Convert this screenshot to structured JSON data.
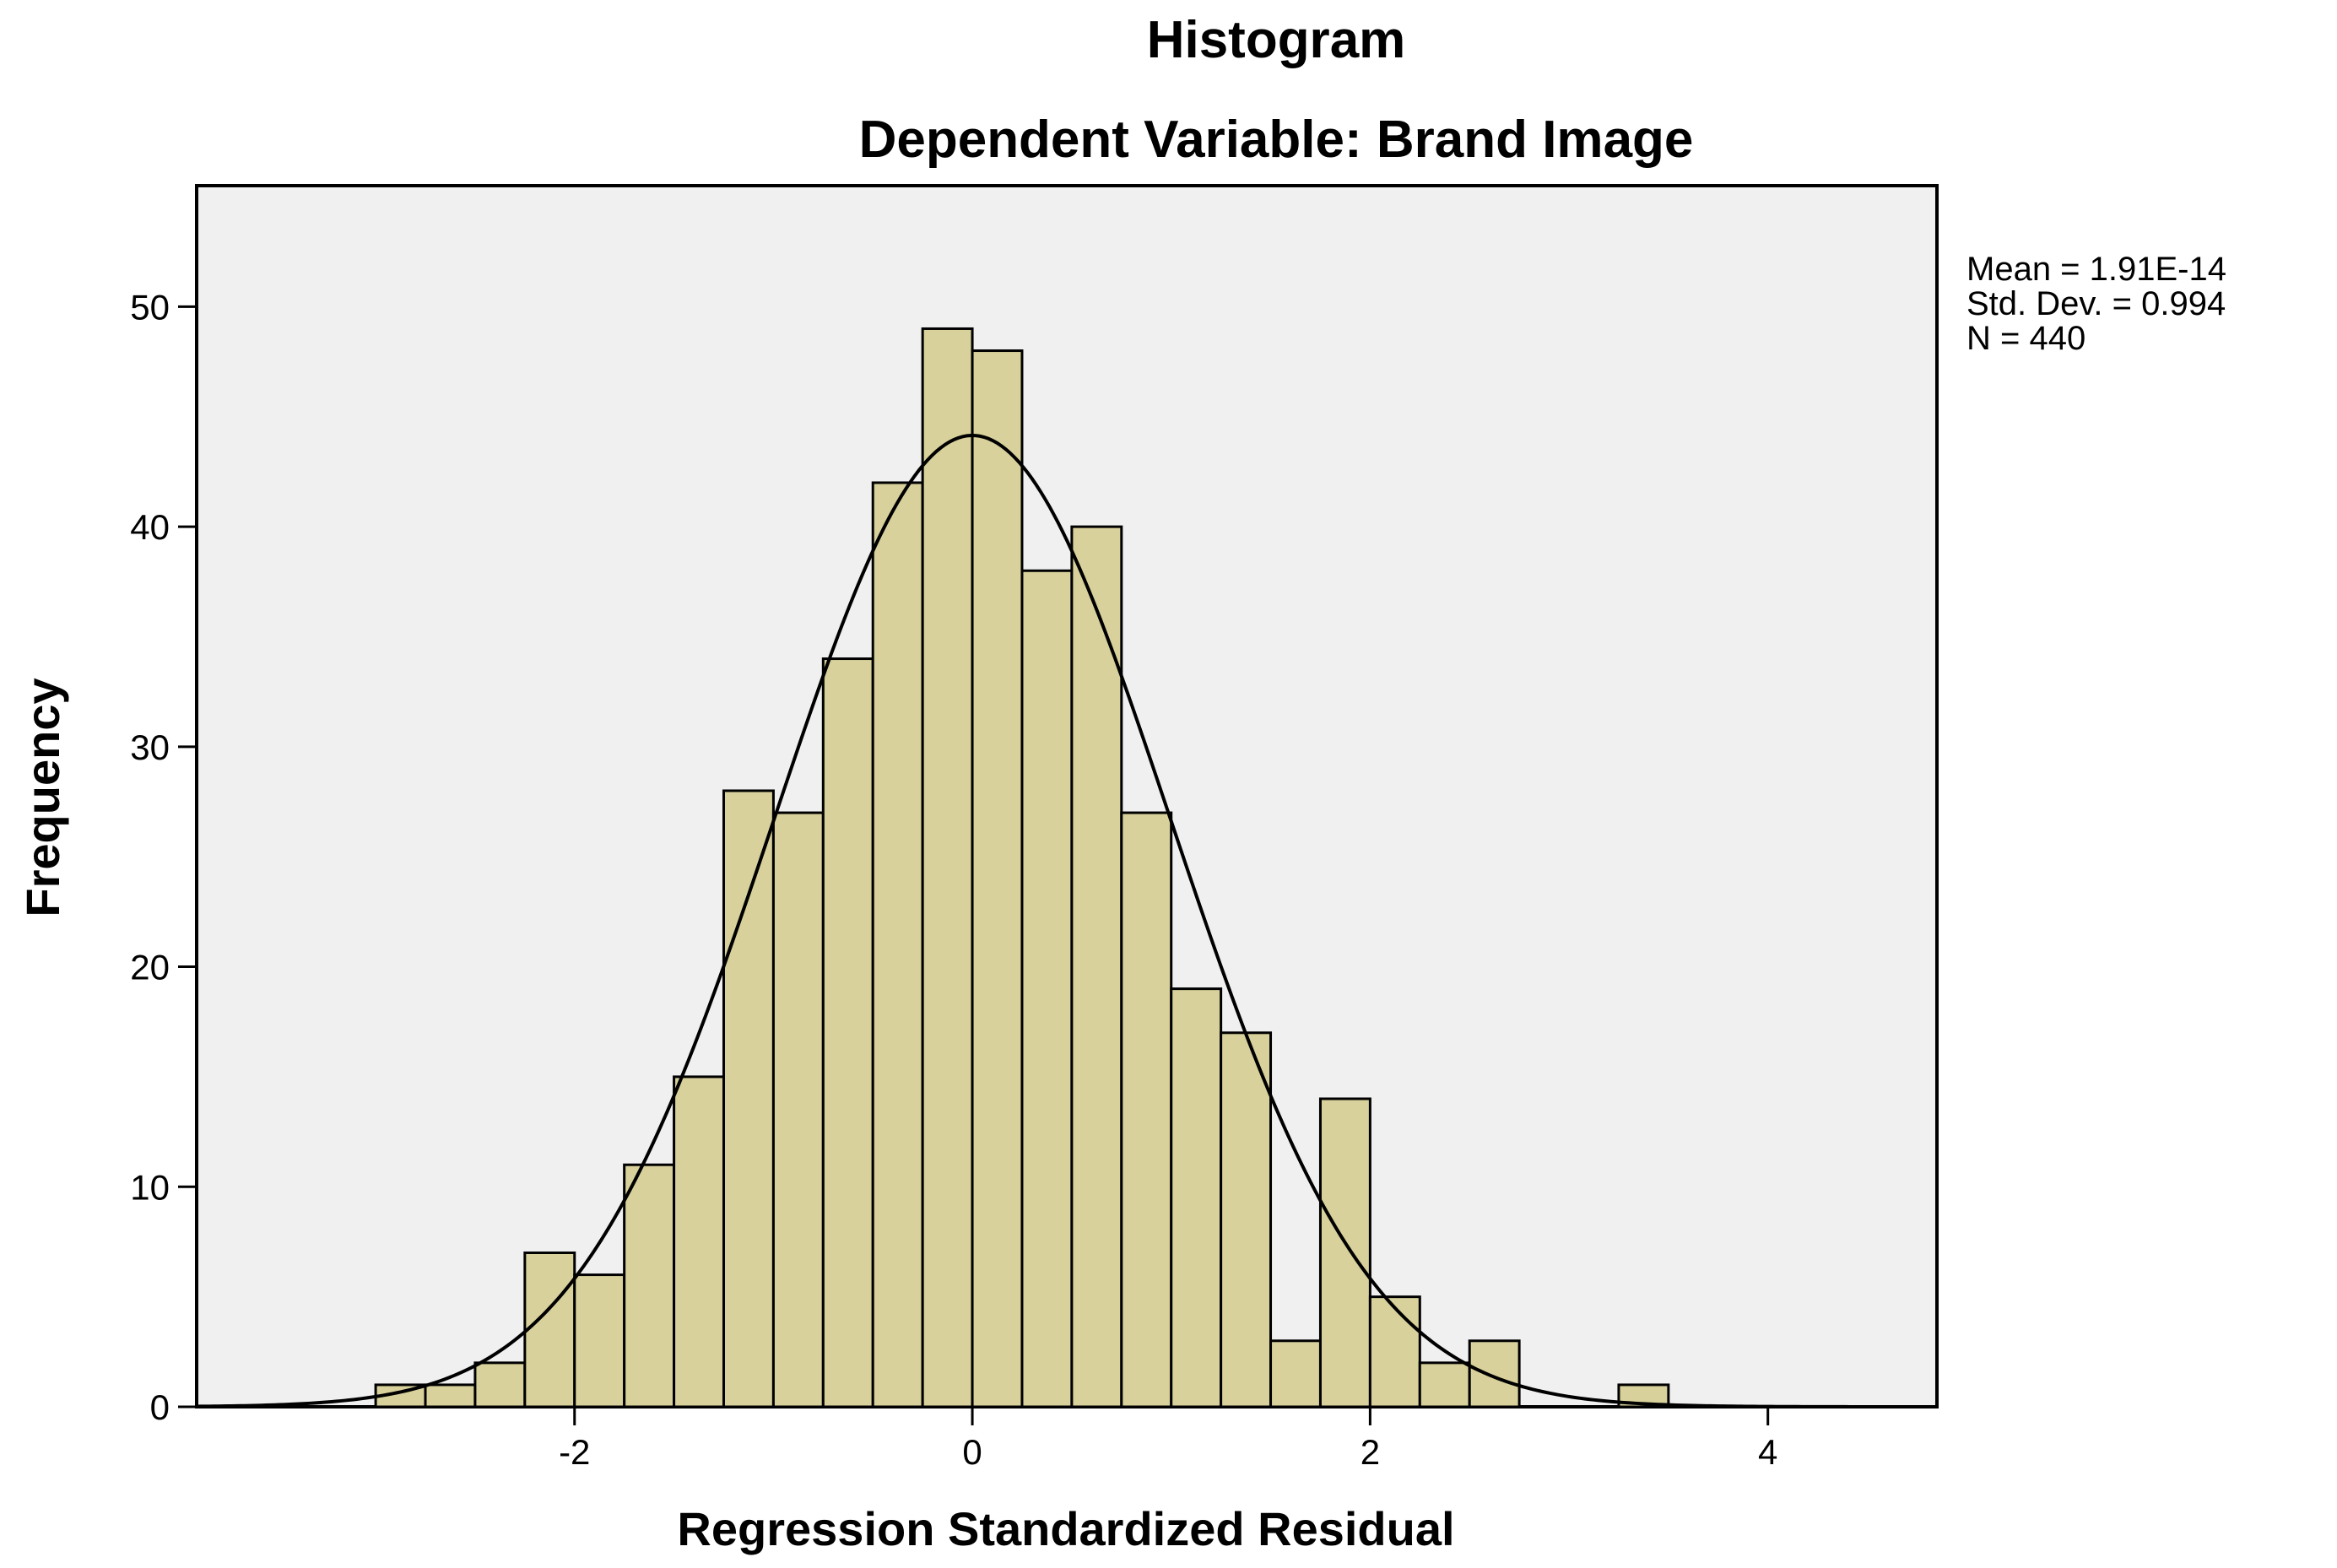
{
  "chart_data": {
    "type": "bar",
    "title": "Histogram",
    "subtitle": "Dependent Variable: Brand Image",
    "xlabel": "Regression Standardized Residual",
    "ylabel": "Frequency",
    "xlim": [
      -3.9,
      4.85
    ],
    "ylim": [
      0,
      55.5
    ],
    "x_ticks": [
      -2,
      0,
      2,
      4
    ],
    "y_ticks": [
      0,
      10,
      20,
      30,
      40,
      50
    ],
    "grid": false,
    "bin_width": 0.25,
    "bins": [
      {
        "x0": -3.0,
        "x1": -2.75,
        "count": 1
      },
      {
        "x0": -2.75,
        "x1": -2.5,
        "count": 1
      },
      {
        "x0": -2.5,
        "x1": -2.25,
        "count": 2
      },
      {
        "x0": -2.25,
        "x1": -2.0,
        "count": 7
      },
      {
        "x0": -2.0,
        "x1": -1.75,
        "count": 6
      },
      {
        "x0": -1.75,
        "x1": -1.5,
        "count": 11
      },
      {
        "x0": -1.5,
        "x1": -1.25,
        "count": 15
      },
      {
        "x0": -1.25,
        "x1": -1.0,
        "count": 28
      },
      {
        "x0": -1.0,
        "x1": -0.75,
        "count": 27
      },
      {
        "x0": -0.75,
        "x1": -0.5,
        "count": 34
      },
      {
        "x0": -0.5,
        "x1": -0.25,
        "count": 42
      },
      {
        "x0": -0.25,
        "x1": 0.0,
        "count": 49
      },
      {
        "x0": 0.0,
        "x1": 0.25,
        "count": 48
      },
      {
        "x0": 0.25,
        "x1": 0.5,
        "count": 38
      },
      {
        "x0": 0.5,
        "x1": 0.75,
        "count": 40
      },
      {
        "x0": 0.75,
        "x1": 1.0,
        "count": 27
      },
      {
        "x0": 1.0,
        "x1": 1.25,
        "count": 19
      },
      {
        "x0": 1.25,
        "x1": 1.5,
        "count": 17
      },
      {
        "x0": 1.5,
        "x1": 1.75,
        "count": 3
      },
      {
        "x0": 1.75,
        "x1": 2.0,
        "count": 14
      },
      {
        "x0": 2.0,
        "x1": 2.25,
        "count": 5
      },
      {
        "x0": 2.25,
        "x1": 2.5,
        "count": 2
      },
      {
        "x0": 2.5,
        "x1": 2.75,
        "count": 3
      },
      {
        "x0": 3.25,
        "x1": 3.5,
        "count": 1
      }
    ],
    "normal_curve": {
      "mean": 0,
      "std_dev": 0.994,
      "n": 440
    },
    "stats": {
      "mean_label": "Mean = 1.91E-14",
      "std_label": "Std. Dev. = 0.994",
      "n_label": "N = 440"
    },
    "colors": {
      "bar_fill": "#d8d19b",
      "bar_stroke": "#000000",
      "plot_background": "#f0f0f0",
      "curve": "#000000"
    }
  }
}
